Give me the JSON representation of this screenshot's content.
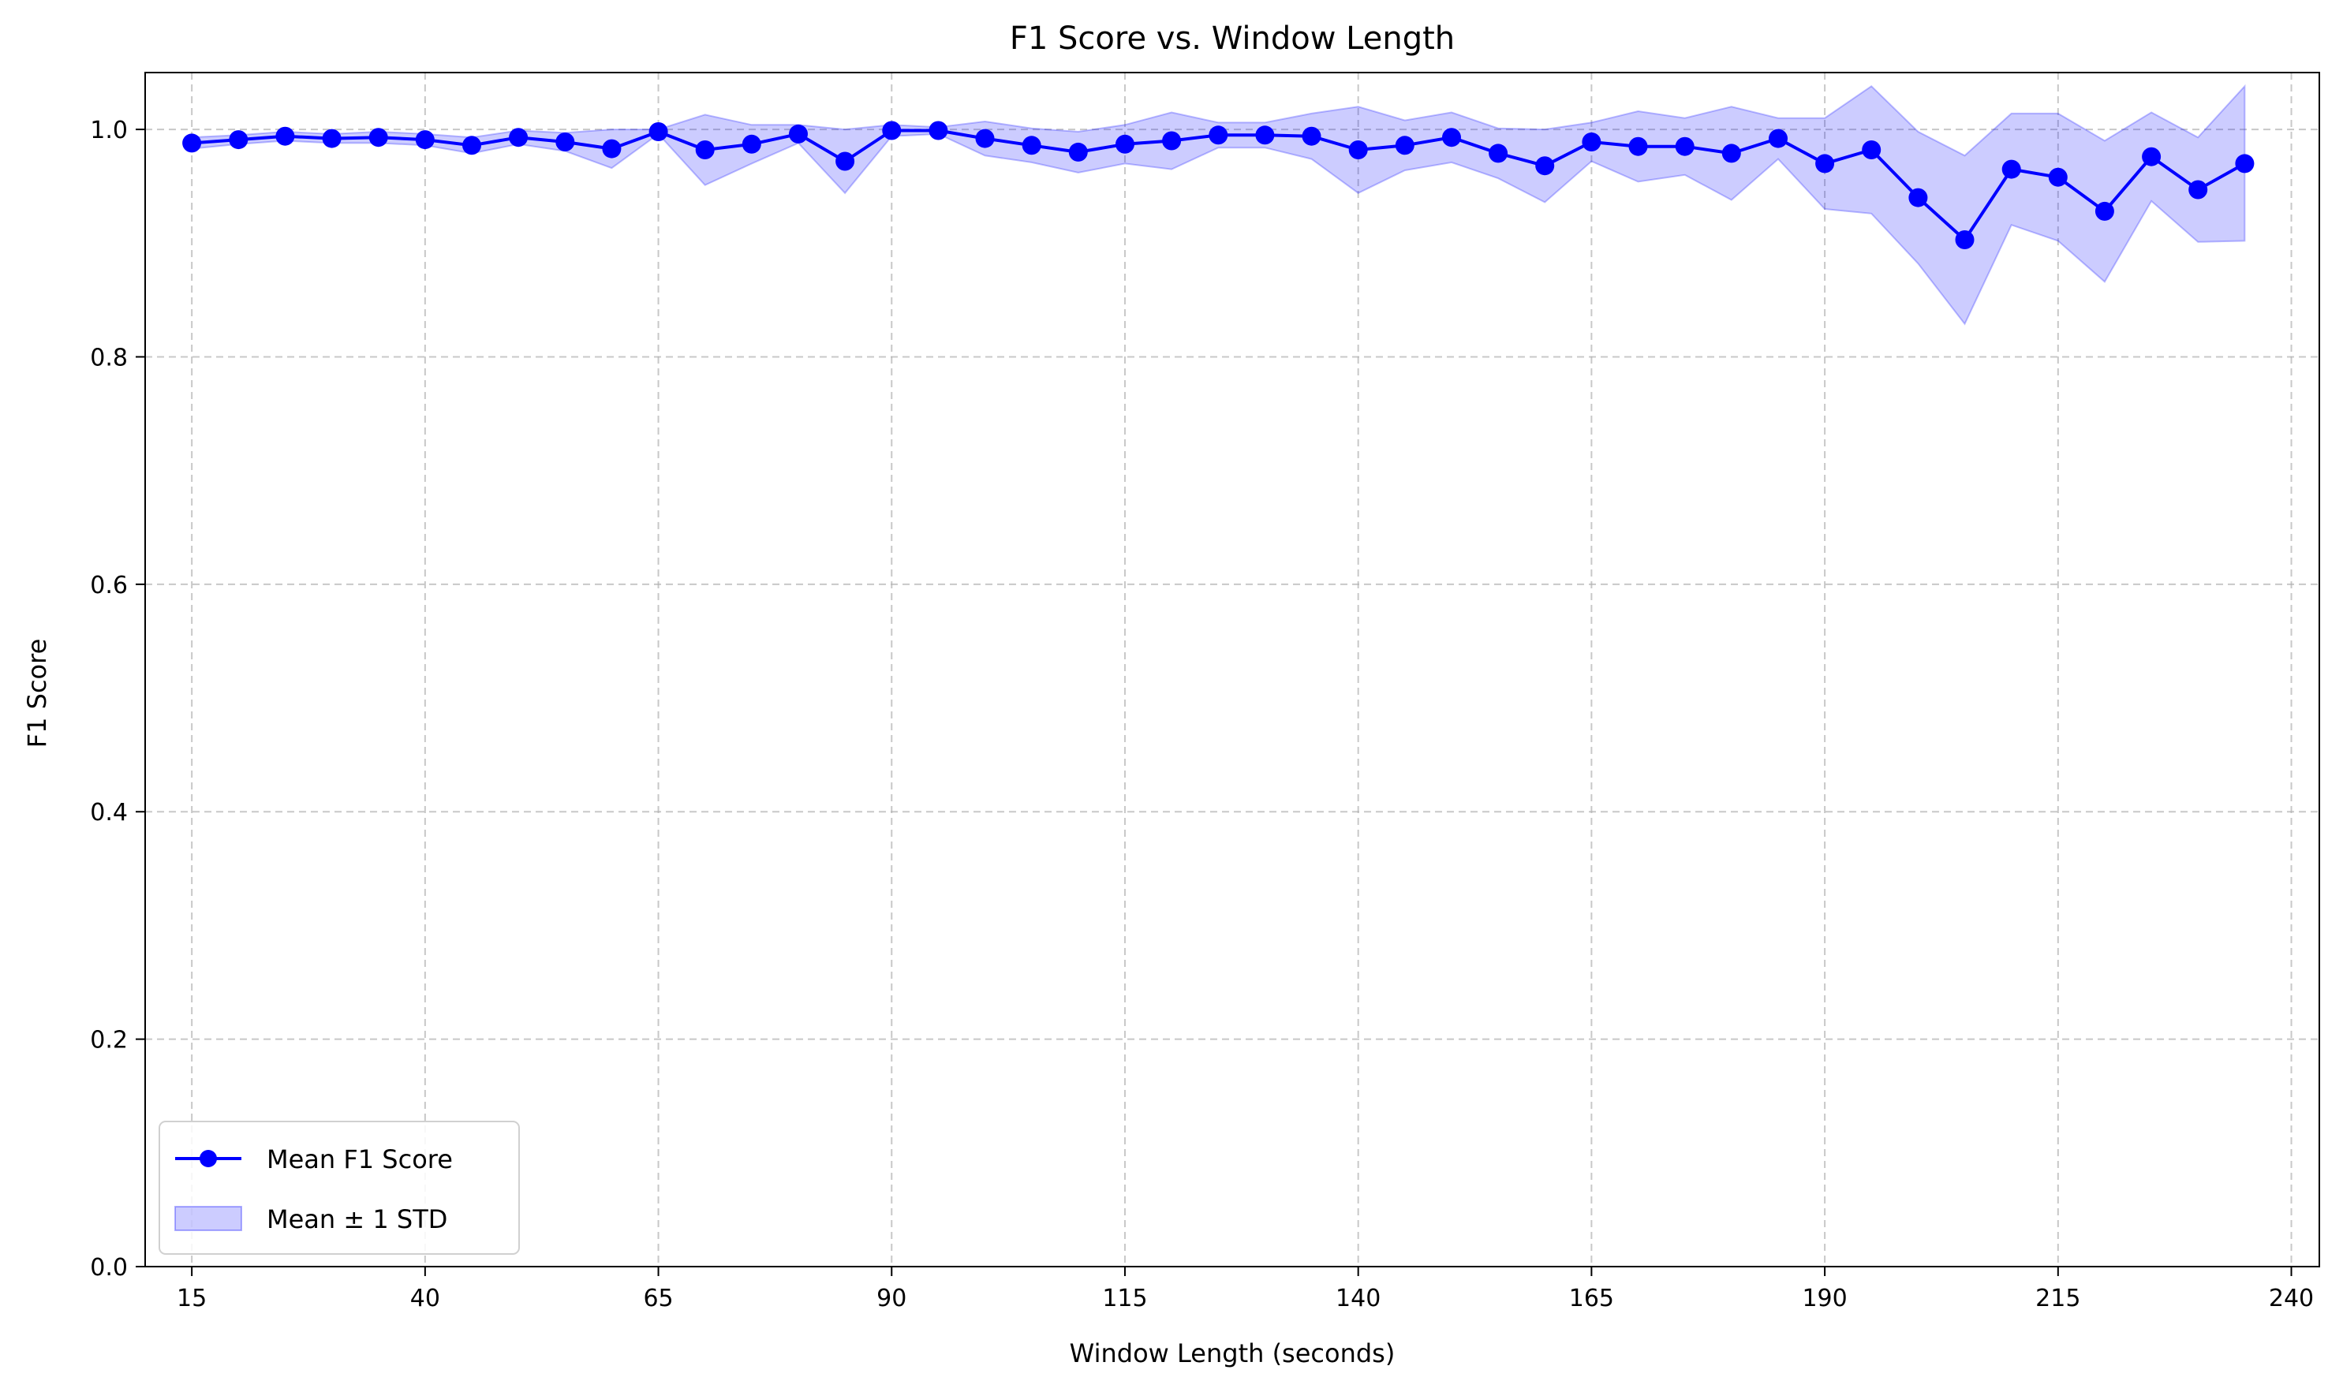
{
  "chart_data": {
    "type": "line",
    "title": "F1 Score vs. Window Length",
    "xlabel": "Window Length (seconds)",
    "ylabel": "F1 Score",
    "xlim": [
      10,
      243
    ],
    "ylim": [
      0,
      1.05
    ],
    "xticks": [
      "15",
      "40",
      "65",
      "90",
      "115",
      "140",
      "165",
      "190",
      "215",
      "240"
    ],
    "yticks": [
      "0.0",
      "0.2",
      "0.4",
      "0.6",
      "0.8",
      "1.0"
    ],
    "grid": true,
    "legend_position": "lower-left",
    "colors": {
      "line": "#0000ff",
      "band": "#0000ff",
      "grid": "#b0b0b0"
    },
    "series": [
      {
        "name": "Mean F1 Score",
        "x": [
          15,
          20,
          25,
          30,
          35,
          40,
          45,
          50,
          55,
          60,
          65,
          70,
          75,
          80,
          85,
          90,
          95,
          100,
          105,
          110,
          115,
          120,
          125,
          130,
          135,
          140,
          145,
          150,
          155,
          160,
          165,
          170,
          175,
          180,
          185,
          190,
          195,
          200,
          205,
          210,
          215,
          220,
          225,
          230,
          235
        ],
        "y": [
          0.988,
          0.991,
          0.994,
          0.992,
          0.993,
          0.991,
          0.986,
          0.993,
          0.989,
          0.983,
          0.998,
          0.982,
          0.987,
          0.996,
          0.972,
          0.999,
          0.999,
          0.992,
          0.986,
          0.98,
          0.987,
          0.99,
          0.995,
          0.995,
          0.994,
          0.982,
          0.986,
          0.993,
          0.979,
          0.968,
          0.989,
          0.985,
          0.985,
          0.979,
          0.992,
          0.97,
          0.982,
          0.94,
          0.903,
          0.965,
          0.958,
          0.928,
          0.976,
          0.947,
          0.97
        ]
      },
      {
        "name": "Mean ± 1 STD",
        "upper": [
          0.993,
          0.995,
          0.998,
          0.996,
          0.998,
          0.996,
          0.993,
          0.999,
          0.997,
          1.0,
          1.0,
          1.013,
          1.004,
          1.004,
          1.0,
          1.004,
          1.002,
          1.007,
          1.001,
          0.998,
          1.004,
          1.015,
          1.006,
          1.006,
          1.014,
          1.02,
          1.008,
          1.015,
          1.001,
          1.0,
          1.006,
          1.016,
          1.01,
          1.02,
          1.01,
          1.01,
          1.038,
          0.998,
          0.977,
          1.014,
          1.014,
          0.99,
          1.015,
          0.993,
          1.038
        ],
        "lower": [
          0.983,
          0.987,
          0.99,
          0.988,
          0.988,
          0.986,
          0.979,
          0.987,
          0.981,
          0.966,
          0.996,
          0.951,
          0.97,
          0.988,
          0.944,
          0.994,
          0.996,
          0.977,
          0.971,
          0.962,
          0.97,
          0.965,
          0.984,
          0.984,
          0.974,
          0.944,
          0.964,
          0.971,
          0.957,
          0.936,
          0.972,
          0.954,
          0.96,
          0.938,
          0.974,
          0.93,
          0.926,
          0.882,
          0.829,
          0.916,
          0.902,
          0.866,
          0.937,
          0.901,
          0.902
        ]
      }
    ]
  }
}
